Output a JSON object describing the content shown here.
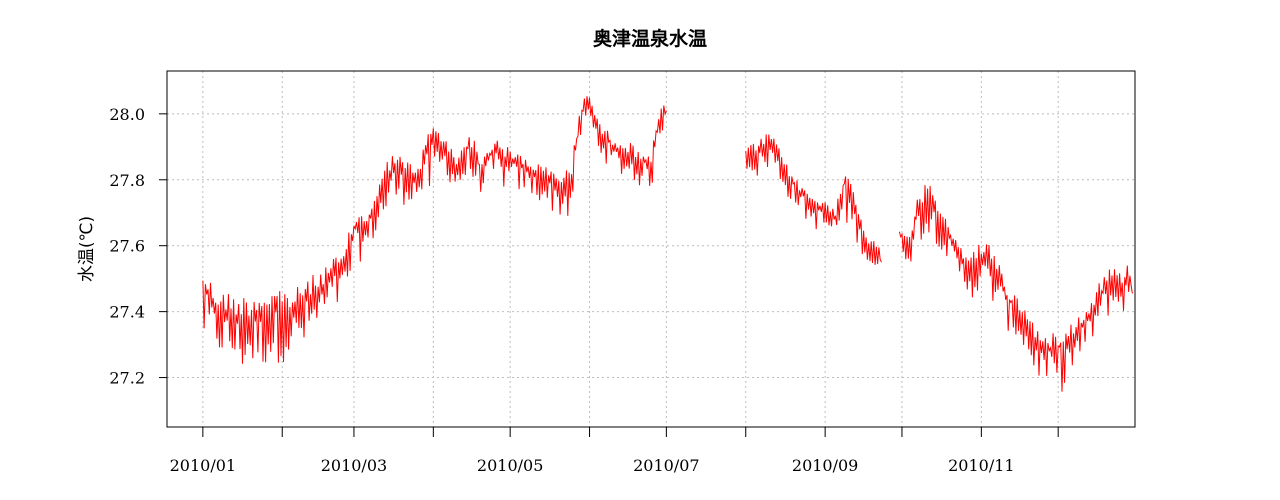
{
  "chart_data": {
    "type": "line",
    "title": "奥津温泉水温",
    "xlabel": "",
    "ylabel": "水温(℃)",
    "grid": true,
    "legend": "none",
    "x_type": "date",
    "xlim": [
      "2009-12-18",
      "2010-12-31"
    ],
    "ylim": [
      27.05,
      28.13
    ],
    "y_ticks": [
      27.2,
      27.4,
      27.6,
      27.8,
      28.0
    ],
    "y_tick_labels": [
      "27.2",
      "27.4",
      "27.6",
      "27.8",
      "28.0"
    ],
    "x_ticks": [
      "2010-01-01",
      "2010-02-01",
      "2010-03-01",
      "2010-04-01",
      "2010-05-01",
      "2010-06-01",
      "2010-07-01",
      "2010-08-01",
      "2010-09-01",
      "2010-10-01",
      "2010-11-01",
      "2010-12-01"
    ],
    "x_tick_labels": [
      "2010/01",
      "",
      "2010/03",
      "",
      "2010/05",
      "",
      "2010/07",
      "",
      "2010/09",
      "",
      "2010/11",
      ""
    ],
    "series": [
      {
        "color": "#ff0000",
        "segments": [
          [
            {
              "date": "2010-01-01",
              "min": 27.26,
              "max": 27.54
            },
            {
              "date": "2010-01-06",
              "min": 27.24,
              "max": 27.47
            },
            {
              "date": "2010-01-11",
              "min": 27.2,
              "max": 27.46
            },
            {
              "date": "2010-01-16",
              "min": 27.17,
              "max": 27.45
            },
            {
              "date": "2010-01-21",
              "min": 27.18,
              "max": 27.46
            },
            {
              "date": "2010-01-26",
              "min": 27.19,
              "max": 27.47
            },
            {
              "date": "2010-01-31",
              "min": 27.2,
              "max": 27.48
            },
            {
              "date": "2010-02-05",
              "min": 27.22,
              "max": 27.46
            },
            {
              "date": "2010-02-10",
              "min": 27.24,
              "max": 27.5
            },
            {
              "date": "2010-02-15",
              "min": 27.3,
              "max": 27.52
            },
            {
              "date": "2010-02-20",
              "min": 27.36,
              "max": 27.56
            },
            {
              "date": "2010-02-25",
              "min": 27.38,
              "max": 27.58
            },
            {
              "date": "2010-03-01",
              "min": 27.5,
              "max": 27.7
            },
            {
              "date": "2010-03-06",
              "min": 27.55,
              "max": 27.7
            },
            {
              "date": "2010-03-11",
              "min": 27.62,
              "max": 27.8
            },
            {
              "date": "2010-03-16",
              "min": 27.68,
              "max": 27.9
            },
            {
              "date": "2010-03-21",
              "min": 27.7,
              "max": 27.86
            },
            {
              "date": "2010-03-26",
              "min": 27.72,
              "max": 27.84
            },
            {
              "date": "2010-03-31",
              "min": 27.7,
              "max": 27.98
            },
            {
              "date": "2010-04-05",
              "min": 27.8,
              "max": 27.94
            },
            {
              "date": "2010-04-10",
              "min": 27.74,
              "max": 27.87
            },
            {
              "date": "2010-04-15",
              "min": 27.76,
              "max": 27.96
            },
            {
              "date": "2010-04-20",
              "min": 27.74,
              "max": 27.86
            },
            {
              "date": "2010-04-25",
              "min": 27.76,
              "max": 27.94
            },
            {
              "date": "2010-04-30",
              "min": 27.74,
              "max": 27.9
            },
            {
              "date": "2010-05-05",
              "min": 27.74,
              "max": 27.88
            },
            {
              "date": "2010-05-10",
              "min": 27.72,
              "max": 27.86
            },
            {
              "date": "2010-05-15",
              "min": 27.7,
              "max": 27.84
            },
            {
              "date": "2010-05-20",
              "min": 27.66,
              "max": 27.82
            },
            {
              "date": "2010-05-25",
              "min": 27.64,
              "max": 27.86
            },
            {
              "date": "2010-05-28",
              "min": 27.9,
              "max": 28.0
            },
            {
              "date": "2010-05-31",
              "min": 27.94,
              "max": 28.09
            },
            {
              "date": "2010-06-05",
              "min": 27.86,
              "max": 27.97
            },
            {
              "date": "2010-06-10",
              "min": 27.8,
              "max": 27.94
            },
            {
              "date": "2010-06-15",
              "min": 27.78,
              "max": 27.92
            },
            {
              "date": "2010-06-20",
              "min": 27.76,
              "max": 27.9
            },
            {
              "date": "2010-06-25",
              "min": 27.74,
              "max": 27.88
            },
            {
              "date": "2010-06-28",
              "min": 27.9,
              "max": 28.0
            },
            {
              "date": "2010-07-01",
              "min": 27.96,
              "max": 28.06
            }
          ],
          [
            {
              "date": "2010-08-01",
              "min": 27.82,
              "max": 27.9
            },
            {
              "date": "2010-08-06",
              "min": 27.78,
              "max": 27.92
            },
            {
              "date": "2010-08-11",
              "min": 27.82,
              "max": 27.95
            },
            {
              "date": "2010-08-16",
              "min": 27.74,
              "max": 27.86
            },
            {
              "date": "2010-08-21",
              "min": 27.7,
              "max": 27.8
            },
            {
              "date": "2010-08-26",
              "min": 27.64,
              "max": 27.76
            },
            {
              "date": "2010-08-31",
              "min": 27.62,
              "max": 27.74
            },
            {
              "date": "2010-09-05",
              "min": 27.6,
              "max": 27.72
            },
            {
              "date": "2010-09-09",
              "min": 27.62,
              "max": 27.87
            },
            {
              "date": "2010-09-14",
              "min": 27.58,
              "max": 27.7
            },
            {
              "date": "2010-09-19",
              "min": 27.5,
              "max": 27.62
            },
            {
              "date": "2010-09-23",
              "min": 27.48,
              "max": 27.62
            }
          ],
          [
            {
              "date": "2010-09-30",
              "min": 27.56,
              "max": 27.66
            },
            {
              "date": "2010-10-04",
              "min": 27.52,
              "max": 27.64
            },
            {
              "date": "2010-10-07",
              "min": 27.58,
              "max": 27.76
            },
            {
              "date": "2010-10-12",
              "min": 27.6,
              "max": 27.8
            },
            {
              "date": "2010-10-17",
              "min": 27.56,
              "max": 27.7
            },
            {
              "date": "2010-10-22",
              "min": 27.48,
              "max": 27.62
            },
            {
              "date": "2010-10-27",
              "min": 27.42,
              "max": 27.58
            },
            {
              "date": "2010-11-01",
              "min": 27.4,
              "max": 27.62
            },
            {
              "date": "2010-11-06",
              "min": 27.38,
              "max": 27.6
            },
            {
              "date": "2010-11-11",
              "min": 27.32,
              "max": 27.48
            },
            {
              "date": "2010-11-16",
              "min": 27.28,
              "max": 27.44
            },
            {
              "date": "2010-11-21",
              "min": 27.18,
              "max": 27.38
            },
            {
              "date": "2010-11-26",
              "min": 27.15,
              "max": 27.32
            },
            {
              "date": "2010-12-01",
              "min": 27.1,
              "max": 27.36
            },
            {
              "date": "2010-12-06",
              "min": 27.16,
              "max": 27.38
            },
            {
              "date": "2010-12-11",
              "min": 27.24,
              "max": 27.4
            },
            {
              "date": "2010-12-16",
              "min": 27.3,
              "max": 27.48
            },
            {
              "date": "2010-12-21",
              "min": 27.36,
              "max": 27.54
            },
            {
              "date": "2010-12-26",
              "min": 27.38,
              "max": 27.52
            },
            {
              "date": "2010-12-30",
              "min": 27.34,
              "max": 27.57
            }
          ]
        ]
      }
    ]
  }
}
